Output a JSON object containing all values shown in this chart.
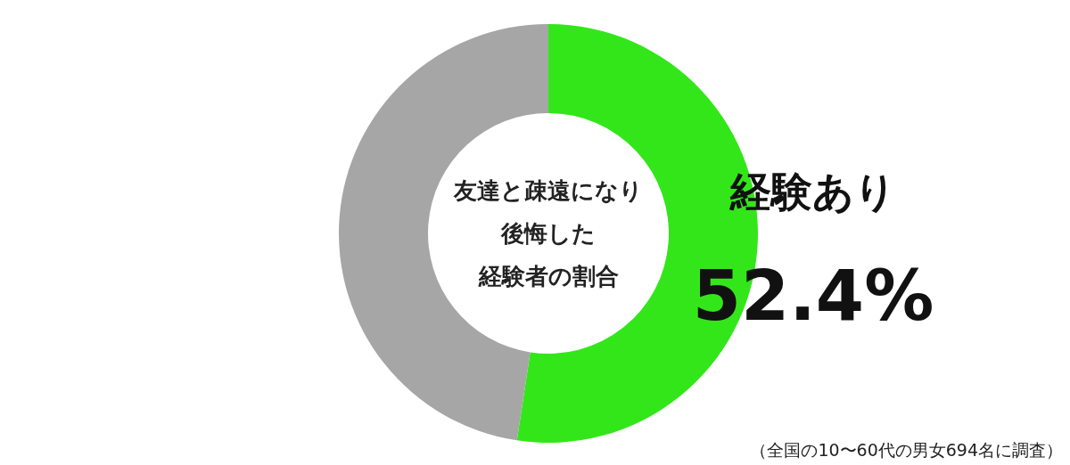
{
  "chart_data": {
    "type": "donut",
    "title": "友達と疎遠になり後悔した経験者の割合",
    "categories": [
      "経験あり",
      null
    ],
    "values": [
      52.4,
      47.6
    ],
    "colors": [
      "#33e61a",
      "#a6a6a6"
    ],
    "value_labels": [
      "52.4%",
      null
    ],
    "annotations": [
      "（全国の10〜60代の男女694名に調査）"
    ]
  }
}
